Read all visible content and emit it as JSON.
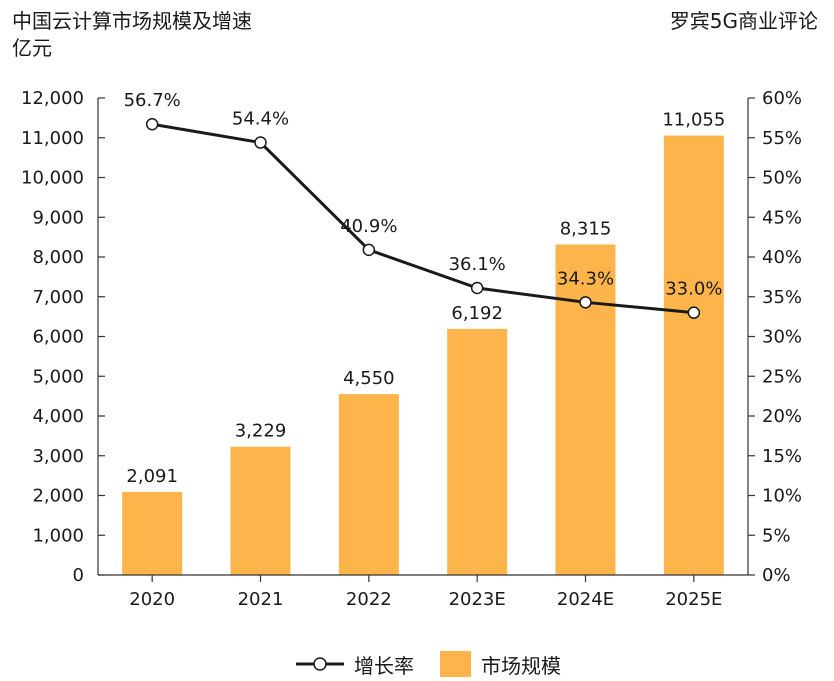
{
  "header": {
    "title": "中国云计算市场规模及增速",
    "unit": "亿元",
    "source": "罗宾5G商业评论"
  },
  "legend": {
    "line_label": "增长率",
    "bar_label": "市场规模"
  },
  "colors": {
    "bar": "#FDB44B",
    "line": "#1a1a1a",
    "axis": "#333333",
    "marker_fill": "#ffffff"
  },
  "chart_data": {
    "type": "bar",
    "title": "中国云计算市场规模及增速",
    "ylabel": "亿元",
    "categories": [
      "2020",
      "2021",
      "2022",
      "2023E",
      "2024E",
      "2025E"
    ],
    "series": [
      {
        "name": "市场规模",
        "type": "bar",
        "axis": "left",
        "values": [
          2091,
          3229,
          4550,
          6192,
          8315,
          11055
        ],
        "labels": [
          "2,091",
          "3,229",
          "4,550",
          "6,192",
          "8,315",
          "11,055"
        ]
      },
      {
        "name": "增长率",
        "type": "line",
        "axis": "right",
        "values": [
          56.7,
          54.4,
          40.9,
          36.1,
          34.3,
          33.0
        ],
        "labels": [
          "56.7%",
          "54.4%",
          "40.9%",
          "36.1%",
          "34.3%",
          "33.0%"
        ]
      }
    ],
    "ylim": [
      0,
      12000
    ],
    "y2lim": [
      0,
      60
    ],
    "yticks": [
      "0",
      "1,000",
      "2,000",
      "3,000",
      "4,000",
      "5,000",
      "6,000",
      "7,000",
      "8,000",
      "9,000",
      "10,000",
      "11,000",
      "12,000"
    ],
    "y2ticks": [
      "0%",
      "5%",
      "10%",
      "15%",
      "20%",
      "25%",
      "30%",
      "35%",
      "40%",
      "45%",
      "50%",
      "55%",
      "60%"
    ],
    "grid": false,
    "legend_position": "bottom"
  }
}
